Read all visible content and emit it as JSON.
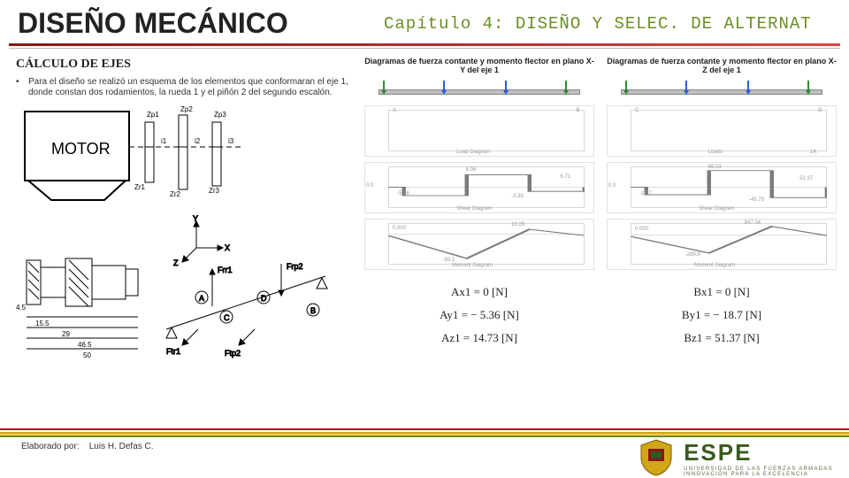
{
  "header": {
    "title": "DISEÑO MECÁNICO",
    "chapter": "Capítulo 4: DISEÑO Y SELEC. DE ALTERNAT"
  },
  "left": {
    "subtitle": "CÁLCULO DE EJES",
    "bullet": "Para el diseño se realizó un esquema de los elementos que conformaran el eje 1, donde constan dos rodamientos, la rueda 1 y el piñón 2 del segundo escalón.",
    "motor_label": "MOTOR",
    "gear_labels": [
      "Zp1",
      "Zp2",
      "Zr1",
      "Zr2",
      "Zp3",
      "i1",
      "i2",
      "i3",
      "Zr3"
    ],
    "force_labels": {
      "frr1": "Frr1",
      "frp2": "Frp2",
      "ftr1": "Ftr1",
      "ftp2": "Ftp2",
      "a": "A",
      "b": "B",
      "c": "C",
      "d": "D"
    },
    "axes": {
      "x": "X",
      "y": "Y",
      "z": "Z"
    },
    "dims": [
      "4.5",
      "15.5",
      "29",
      "46.5",
      "50"
    ]
  },
  "diagrams": {
    "left": {
      "caption": "Diagramas de fuerza contante y momento flector en plano X-Y del eje 1",
      "top_labels": [
        "A",
        "B"
      ],
      "load_text": "Load Diagram",
      "shear_labels": [
        "-5.36",
        "8.06",
        "-3.35",
        "6.71",
        "0.0"
      ],
      "shear_text": "Shear Diagram",
      "moment_labels": [
        "0.000",
        "-83.1",
        "10.29"
      ],
      "moment_text": "Moment Diagram",
      "shear_pts": [
        [
          0,
          50
        ],
        [
          8,
          50
        ],
        [
          8,
          70
        ],
        [
          40,
          70
        ],
        [
          40,
          20
        ],
        [
          72,
          20
        ],
        [
          72,
          60
        ],
        [
          100,
          60
        ],
        [
          100,
          50
        ]
      ],
      "moment_pts": [
        [
          0,
          30
        ],
        [
          40,
          85
        ],
        [
          72,
          15
        ],
        [
          100,
          30
        ]
      ],
      "eqs": [
        "Ax1 = 0 [N]",
        "Ay1 = − 5.36 [N]",
        "Az1 = 14.73 [N]"
      ]
    },
    "right": {
      "caption": "Diagramas de fuerza contante y momento flector en plano X-Z del eje 1",
      "top_labels": [
        "C",
        "D"
      ],
      "load_text": "Loads",
      "shear_labels": [
        "-18.7",
        "96.03",
        "-45.79",
        "51.37",
        "14.",
        "0.0"
      ],
      "shear_text": "Shear Diagram",
      "moment_labels": [
        "0.000",
        "-289.8",
        "847.04"
      ],
      "moment_text": "Moment Diagram",
      "shear_pts": [
        [
          0,
          50
        ],
        [
          8,
          50
        ],
        [
          8,
          68
        ],
        [
          40,
          68
        ],
        [
          40,
          10
        ],
        [
          72,
          10
        ],
        [
          72,
          75
        ],
        [
          100,
          75
        ],
        [
          100,
          50
        ]
      ],
      "moment_pts": [
        [
          0,
          32
        ],
        [
          40,
          72
        ],
        [
          72,
          8
        ],
        [
          100,
          30
        ]
      ],
      "eqs": [
        "Bx1 = 0 [N]",
        "By1 = − 18.7 [N]",
        "Bz1 = 51.37 [N]"
      ]
    }
  },
  "footer": {
    "elaborado_label": "Elaborado por:",
    "author": "Luis H. Defas C.",
    "brand": "ESPE",
    "brand_sub1": "UNIVERSIDAD DE LAS FUERZAS ARMADAS",
    "brand_sub2": "INNOVACIÓN  PARA  LA  EXCELENCIA"
  },
  "colors": {
    "load_arrow_green": "#2e8b2e",
    "load_arrow_blue": "#2a5cd8",
    "plot_line": "#7b7b7b"
  }
}
